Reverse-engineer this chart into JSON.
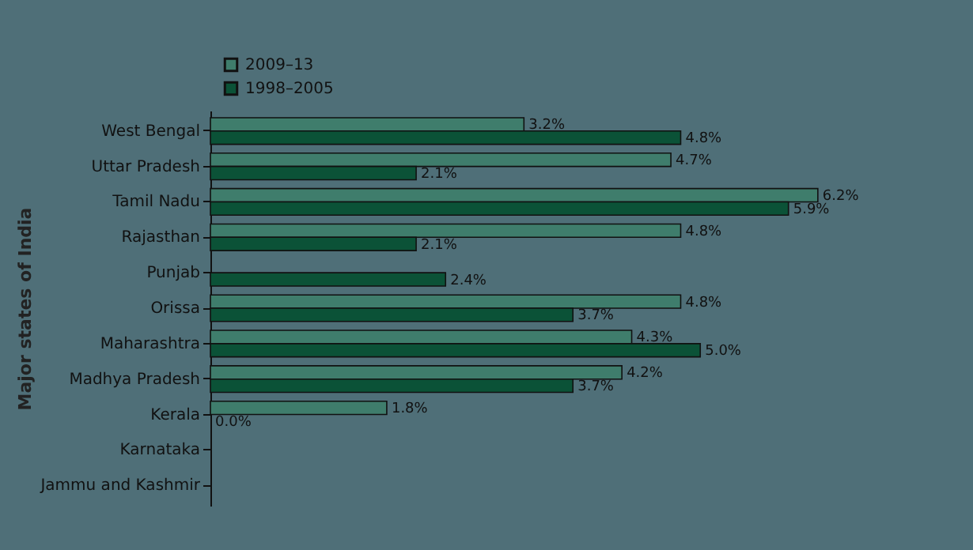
{
  "chart_data": {
    "type": "bar",
    "orientation": "horizontal",
    "ylabel": "Major states of India",
    "legend": "top left",
    "data_labels": true,
    "categories": [
      "West Bengal",
      "Uttar Pradesh",
      "Tamil Nadu",
      "Rajasthan",
      "Punjab",
      "Orissa",
      "Maharashtra",
      "Madhya Pradesh",
      "Kerala",
      "Karnataka",
      "Jammu and Kashmir"
    ],
    "series": [
      {
        "name": "2009–13",
        "color": "#3f7d6c",
        "values": [
          3.2,
          4.7,
          6.2,
          4.8,
          null,
          4.8,
          4.3,
          4.2,
          1.8,
          null,
          null
        ],
        "value_labels": [
          "3.2%",
          "4.7%",
          "6.2%",
          "4.8%",
          null,
          "4.8%",
          "4.3%",
          "4.2%",
          "1.8%",
          null,
          null
        ]
      },
      {
        "name": "1998–2005",
        "color": "#0b5237",
        "values": [
          4.8,
          2.1,
          5.9,
          2.1,
          2.4,
          3.7,
          5.0,
          3.7,
          0.0,
          null,
          null
        ],
        "value_labels": [
          "4.8%",
          "2.1%",
          "5.9%",
          "2.1%",
          "2.4%",
          "3.7%",
          "5.0%",
          "3.7%",
          "0.0%",
          null,
          null
        ]
      }
    ]
  }
}
